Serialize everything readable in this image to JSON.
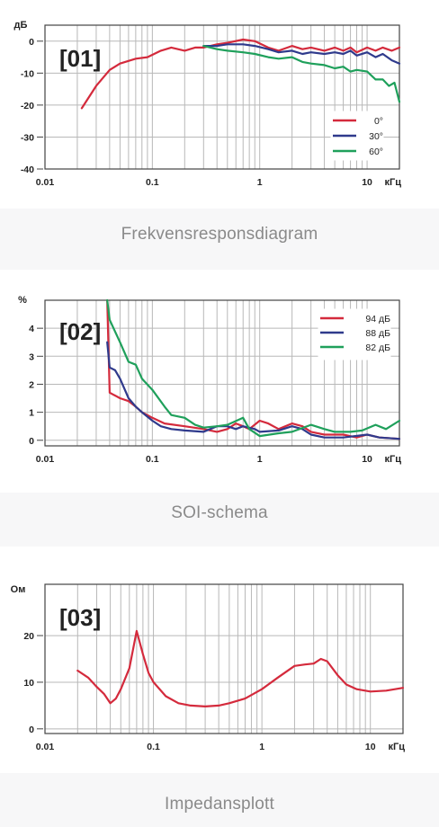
{
  "charts": [
    {
      "caption": "Frekvensresponsdiagram",
      "badge": "[01]",
      "chart_data": {
        "type": "line",
        "ylabel": "дБ",
        "xlabel": "кГц",
        "x_scale": "log",
        "xlim": [
          0.01,
          20
        ],
        "ylim": [
          -40,
          5
        ],
        "x_ticks": [
          "0.01",
          "0.1",
          "1",
          "10"
        ],
        "y_ticks": [
          "0",
          "-10",
          "-20",
          "-30",
          "-40"
        ],
        "grid": true,
        "legend": "bottom-right",
        "series": [
          {
            "name": "0°",
            "color": "#d42a3c",
            "points": [
              [
                0.022,
                -21
              ],
              [
                0.03,
                -14
              ],
              [
                0.04,
                -9
              ],
              [
                0.05,
                -7
              ],
              [
                0.07,
                -5.5
              ],
              [
                0.09,
                -5
              ],
              [
                0.12,
                -3
              ],
              [
                0.15,
                -2
              ],
              [
                0.2,
                -3
              ],
              [
                0.25,
                -2
              ],
              [
                0.3,
                -2
              ],
              [
                0.4,
                -1
              ],
              [
                0.5,
                -0.5
              ],
              [
                0.7,
                0.5
              ],
              [
                0.9,
                0
              ],
              [
                1.2,
                -2
              ],
              [
                1.5,
                -3
              ],
              [
                2,
                -1.5
              ],
              [
                2.5,
                -2.5
              ],
              [
                3,
                -2
              ],
              [
                4,
                -3
              ],
              [
                5,
                -2
              ],
              [
                6,
                -3
              ],
              [
                7,
                -2
              ],
              [
                8,
                -3.5
              ],
              [
                10,
                -2
              ],
              [
                12,
                -3
              ],
              [
                14,
                -2
              ],
              [
                17,
                -3
              ],
              [
                20,
                -2
              ]
            ]
          },
          {
            "name": "30°",
            "color": "#2f3a8c",
            "points": [
              [
                0.3,
                -1.5
              ],
              [
                0.4,
                -1.5
              ],
              [
                0.5,
                -1
              ],
              [
                0.7,
                -1
              ],
              [
                0.9,
                -1.5
              ],
              [
                1.2,
                -2.5
              ],
              [
                1.5,
                -3.5
              ],
              [
                2,
                -3
              ],
              [
                2.5,
                -4
              ],
              [
                3,
                -3.5
              ],
              [
                4,
                -4
              ],
              [
                5,
                -3.5
              ],
              [
                6,
                -4
              ],
              [
                7,
                -3
              ],
              [
                8,
                -4.5
              ],
              [
                10,
                -3.5
              ],
              [
                12,
                -5
              ],
              [
                14,
                -4
              ],
              [
                17,
                -6
              ],
              [
                20,
                -7
              ]
            ]
          },
          {
            "name": "60°",
            "color": "#1fa05b",
            "points": [
              [
                0.3,
                -1.5
              ],
              [
                0.4,
                -2.5
              ],
              [
                0.5,
                -3
              ],
              [
                0.7,
                -3.5
              ],
              [
                0.9,
                -4
              ],
              [
                1.2,
                -5
              ],
              [
                1.5,
                -5.5
              ],
              [
                2,
                -5
              ],
              [
                2.5,
                -6.5
              ],
              [
                3,
                -7
              ],
              [
                4,
                -7.5
              ],
              [
                5,
                -8.5
              ],
              [
                6,
                -8
              ],
              [
                7,
                -9.5
              ],
              [
                8,
                -9
              ],
              [
                10,
                -9.5
              ],
              [
                12,
                -12
              ],
              [
                14,
                -12
              ],
              [
                16,
                -14
              ],
              [
                18,
                -13
              ],
              [
                20,
                -19
              ]
            ]
          }
        ]
      }
    },
    {
      "caption": "SOI-schema",
      "badge": "[02]",
      "chart_data": {
        "type": "line",
        "ylabel": "%",
        "xlabel": "кГц",
        "x_scale": "log",
        "xlim": [
          0.01,
          20
        ],
        "ylim": [
          -0.2,
          5
        ],
        "x_ticks": [
          "0.01",
          "0.1",
          "1",
          "10"
        ],
        "y_ticks": [
          "4",
          "3",
          "2",
          "1",
          "0"
        ],
        "grid": true,
        "legend": "top-right",
        "series": [
          {
            "name": "94 дБ",
            "color": "#d42a3c",
            "points": [
              [
                0.038,
                5
              ],
              [
                0.04,
                1.7
              ],
              [
                0.05,
                1.5
              ],
              [
                0.06,
                1.4
              ],
              [
                0.07,
                1.2
              ],
              [
                0.08,
                1.0
              ],
              [
                0.1,
                0.8
              ],
              [
                0.13,
                0.6
              ],
              [
                0.2,
                0.5
              ],
              [
                0.3,
                0.4
              ],
              [
                0.4,
                0.3
              ],
              [
                0.5,
                0.4
              ],
              [
                0.6,
                0.6
              ],
              [
                0.7,
                0.5
              ],
              [
                0.8,
                0.4
              ],
              [
                1.0,
                0.7
              ],
              [
                1.2,
                0.6
              ],
              [
                1.5,
                0.4
              ],
              [
                2.0,
                0.6
              ],
              [
                2.5,
                0.5
              ],
              [
                3,
                0.3
              ],
              [
                4,
                0.2
              ],
              [
                6,
                0.2
              ],
              [
                8,
                0.1
              ],
              [
                10,
                0.2
              ],
              [
                13,
                0.1
              ],
              [
                20,
                0.05
              ]
            ]
          },
          {
            "name": "88 дБ",
            "color": "#2f3a8c",
            "points": [
              [
                0.038,
                3.5
              ],
              [
                0.04,
                2.6
              ],
              [
                0.045,
                2.5
              ],
              [
                0.05,
                2.2
              ],
              [
                0.06,
                1.5
              ],
              [
                0.07,
                1.2
              ],
              [
                0.08,
                1.0
              ],
              [
                0.1,
                0.7
              ],
              [
                0.12,
                0.5
              ],
              [
                0.15,
                0.4
              ],
              [
                0.2,
                0.35
              ],
              [
                0.3,
                0.3
              ],
              [
                0.4,
                0.5
              ],
              [
                0.5,
                0.5
              ],
              [
                0.6,
                0.4
              ],
              [
                0.7,
                0.5
              ],
              [
                0.9,
                0.4
              ],
              [
                1.0,
                0.3
              ],
              [
                1.5,
                0.35
              ],
              [
                2.0,
                0.5
              ],
              [
                2.5,
                0.4
              ],
              [
                3,
                0.2
              ],
              [
                4,
                0.1
              ],
              [
                6,
                0.1
              ],
              [
                10,
                0.2
              ],
              [
                13,
                0.1
              ],
              [
                20,
                0.05
              ]
            ]
          },
          {
            "name": "82 дБ",
            "color": "#1fa05b",
            "points": [
              [
                0.038,
                5
              ],
              [
                0.04,
                4.3
              ],
              [
                0.05,
                3.5
              ],
              [
                0.06,
                2.8
              ],
              [
                0.07,
                2.7
              ],
              [
                0.08,
                2.2
              ],
              [
                0.1,
                1.8
              ],
              [
                0.13,
                1.2
              ],
              [
                0.15,
                0.9
              ],
              [
                0.2,
                0.8
              ],
              [
                0.25,
                0.55
              ],
              [
                0.3,
                0.45
              ],
              [
                0.4,
                0.5
              ],
              [
                0.5,
                0.55
              ],
              [
                0.7,
                0.8
              ],
              [
                0.8,
                0.4
              ],
              [
                1.0,
                0.15
              ],
              [
                1.5,
                0.25
              ],
              [
                2,
                0.3
              ],
              [
                3,
                0.55
              ],
              [
                4,
                0.4
              ],
              [
                5,
                0.3
              ],
              [
                7,
                0.3
              ],
              [
                9,
                0.35
              ],
              [
                12,
                0.55
              ],
              [
                15,
                0.4
              ],
              [
                20,
                0.7
              ]
            ]
          }
        ]
      }
    },
    {
      "caption": "Impedansplott",
      "badge": "[03]",
      "chart_data": {
        "type": "line",
        "ylabel": "Ом",
        "xlabel": "кГц",
        "x_scale": "log",
        "xlim": [
          0.01,
          20
        ],
        "ylim": [
          -1,
          31
        ],
        "x_ticks": [
          "0.01",
          "0.1",
          "1",
          "10"
        ],
        "y_ticks": [
          "20",
          "10",
          "0"
        ],
        "grid": true,
        "legend": "none",
        "series": [
          {
            "color": "#d42a3c",
            "points": [
              [
                0.02,
                12.5
              ],
              [
                0.025,
                11
              ],
              [
                0.03,
                9
              ],
              [
                0.035,
                7.5
              ],
              [
                0.04,
                5.5
              ],
              [
                0.045,
                6.5
              ],
              [
                0.05,
                8.5
              ],
              [
                0.06,
                13
              ],
              [
                0.07,
                21
              ],
              [
                0.08,
                16
              ],
              [
                0.09,
                12
              ],
              [
                0.1,
                10
              ],
              [
                0.13,
                7
              ],
              [
                0.17,
                5.5
              ],
              [
                0.22,
                5
              ],
              [
                0.3,
                4.8
              ],
              [
                0.4,
                5
              ],
              [
                0.5,
                5.5
              ],
              [
                0.7,
                6.5
              ],
              [
                1.0,
                8.5
              ],
              [
                1.4,
                11
              ],
              [
                2.0,
                13.5
              ],
              [
                2.5,
                13.8
              ],
              [
                3.0,
                14
              ],
              [
                3.5,
                15
              ],
              [
                4.0,
                14.5
              ],
              [
                5.0,
                11.5
              ],
              [
                6.0,
                9.5
              ],
              [
                7.5,
                8.5
              ],
              [
                10,
                8
              ],
              [
                14,
                8.2
              ],
              [
                20,
                8.8
              ]
            ]
          }
        ]
      }
    }
  ]
}
